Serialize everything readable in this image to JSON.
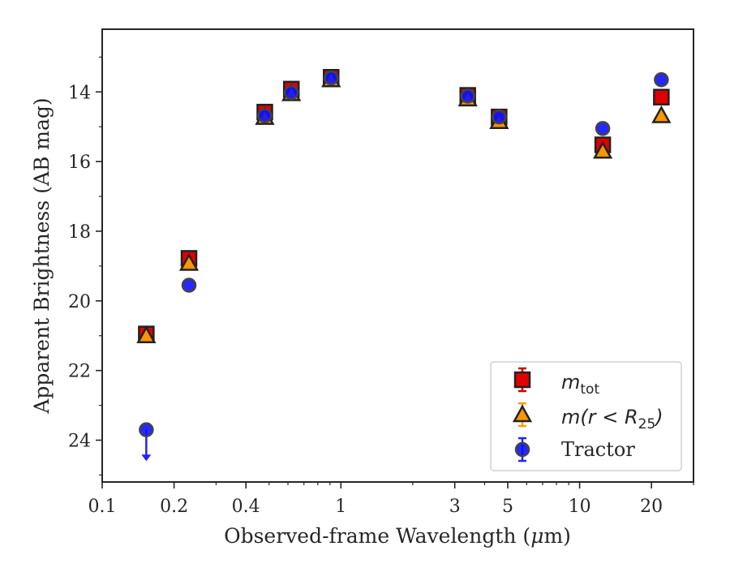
{
  "chart_data": {
    "type": "scatter",
    "xlabel_pre": "Observed-frame Wavelength (",
    "xlabel_mu": "μ",
    "xlabel_post": "m)",
    "ylabel": "Apparent Brightness (AB mag)",
    "x_scale": "log",
    "xlim": [
      0.1,
      30
    ],
    "ylim": [
      25.2,
      12.2
    ],
    "y_inverted": true,
    "x_ticks": [
      0.1,
      0.2,
      0.4,
      1,
      3,
      5,
      10,
      20
    ],
    "x_tick_labels": [
      "0.1",
      "0.2",
      "0.4",
      "1",
      "3",
      "5",
      "10",
      "20"
    ],
    "y_ticks": [
      14,
      16,
      18,
      20,
      22,
      24
    ],
    "y_tick_labels": [
      "14",
      "16",
      "18",
      "20",
      "22",
      "24"
    ],
    "grid": false,
    "legend_position": "lower-right",
    "series": [
      {
        "name": "m_tot",
        "legend_main": "m",
        "legend_sub": "tot",
        "marker": "square",
        "color": "#e00000",
        "edge_color": "#222222",
        "err_color": "#cc0000",
        "points": [
          {
            "x": 0.153,
            "y": 20.95
          },
          {
            "x": 0.231,
            "y": 18.78
          },
          {
            "x": 0.48,
            "y": 14.58
          },
          {
            "x": 0.62,
            "y": 13.92
          },
          {
            "x": 0.91,
            "y": 13.58
          },
          {
            "x": 3.4,
            "y": 14.1
          },
          {
            "x": 4.6,
            "y": 14.72
          },
          {
            "x": 12.5,
            "y": 15.52
          },
          {
            "x": 22.0,
            "y": 14.15
          }
        ]
      },
      {
        "name": "m(r < R25)",
        "legend_main": "m(r < R",
        "legend_sub": "25",
        "legend_tail": ")",
        "marker": "triangle",
        "color": "#ff9500",
        "edge_color": "#222222",
        "err_color": "#f0a500",
        "points": [
          {
            "x": 0.153,
            "y": 21.0
          },
          {
            "x": 0.231,
            "y": 18.92
          },
          {
            "x": 0.48,
            "y": 14.73
          },
          {
            "x": 0.62,
            "y": 14.05
          },
          {
            "x": 0.91,
            "y": 13.65
          },
          {
            "x": 3.4,
            "y": 14.2
          },
          {
            "x": 4.6,
            "y": 14.85
          },
          {
            "x": 12.5,
            "y": 15.7
          },
          {
            "x": 22.0,
            "y": 14.68
          }
        ]
      },
      {
        "name": "Tractor",
        "marker": "circle",
        "color": "#1010ff",
        "edge_color": "#444444",
        "err_color": "#2222ff",
        "points": [
          {
            "x": 0.153,
            "y": 23.7,
            "upper_limit": true,
            "limit_to": 24.6
          },
          {
            "x": 0.231,
            "y": 19.55
          },
          {
            "x": 0.48,
            "y": 14.68
          },
          {
            "x": 0.62,
            "y": 14.02
          },
          {
            "x": 0.91,
            "y": 13.6
          },
          {
            "x": 3.4,
            "y": 14.12
          },
          {
            "x": 4.6,
            "y": 14.72
          },
          {
            "x": 12.5,
            "y": 15.05
          },
          {
            "x": 22.0,
            "y": 13.65
          }
        ]
      }
    ]
  }
}
